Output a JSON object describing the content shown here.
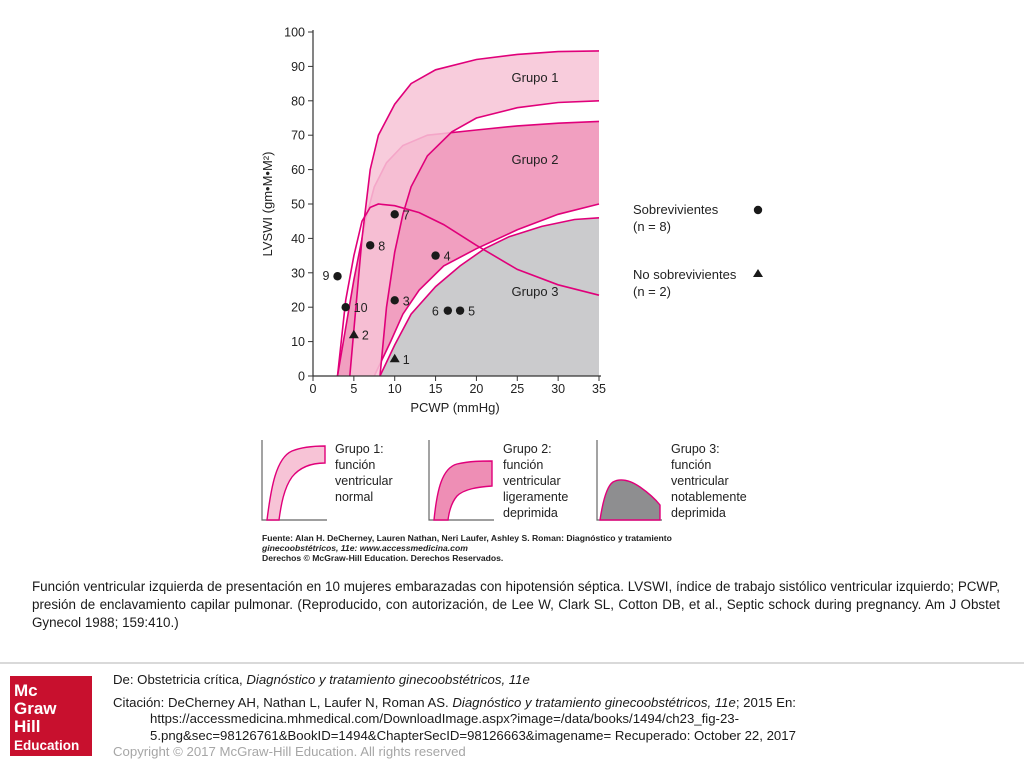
{
  "chart_data": {
    "type": "area",
    "xlabel": "PCWP (mmHg)",
    "ylabel": "LVSWI (gm•M•M²)",
    "xlim": [
      0,
      35
    ],
    "ylim": [
      0,
      100
    ],
    "xticks": [
      0,
      5,
      10,
      15,
      20,
      25,
      30,
      35
    ],
    "yticks": [
      0,
      10,
      20,
      30,
      40,
      50,
      60,
      70,
      80,
      90,
      100
    ],
    "grid": false,
    "series": [
      {
        "name": "Grupo 1",
        "label": "Grupo 1",
        "color": "#f7c3d6",
        "upper": [
          [
            4.5,
            0
          ],
          [
            6,
            40
          ],
          [
            7,
            60
          ],
          [
            8,
            70
          ],
          [
            10,
            79
          ],
          [
            12,
            85
          ],
          [
            15,
            89
          ],
          [
            20,
            92
          ],
          [
            25,
            93.5
          ],
          [
            30,
            94.3
          ],
          [
            35,
            94.5
          ]
        ],
        "lower": [
          [
            8.2,
            0
          ],
          [
            9,
            20
          ],
          [
            10,
            36
          ],
          [
            11,
            47
          ],
          [
            12,
            55
          ],
          [
            14,
            64
          ],
          [
            17,
            71
          ],
          [
            20,
            75
          ],
          [
            25,
            78
          ],
          [
            30,
            79.5
          ],
          [
            35,
            80
          ]
        ]
      },
      {
        "name": "Grupo 2",
        "label": "Grupo 2",
        "color": "#ee8eb5",
        "upper": [
          [
            3,
            0
          ],
          [
            5,
            28
          ],
          [
            6.5,
            46
          ],
          [
            7.5,
            55
          ],
          [
            9,
            62
          ],
          [
            11,
            67
          ],
          [
            14,
            70
          ],
          [
            20,
            71.5
          ],
          [
            25,
            72.7
          ],
          [
            30,
            73.5
          ],
          [
            35,
            74
          ]
        ],
        "lower": [
          [
            7.5,
            0
          ],
          [
            9.5,
            10
          ],
          [
            11,
            18
          ],
          [
            13,
            25
          ],
          [
            16,
            32
          ],
          [
            20,
            37
          ],
          [
            25,
            42.5
          ],
          [
            30,
            47
          ],
          [
            35,
            50
          ]
        ]
      },
      {
        "name": "Grupo 3",
        "label": "Grupo 3",
        "color": "#cbcbcd",
        "upper": [
          [
            8.2,
            0
          ],
          [
            10,
            9
          ],
          [
            12,
            18
          ],
          [
            15,
            26
          ],
          [
            18,
            32
          ],
          [
            21,
            37
          ],
          [
            24,
            40.5
          ],
          [
            28,
            43.5
          ],
          [
            32,
            45.5
          ],
          [
            35,
            46
          ]
        ],
        "lower": [
          [
            8.2,
            0
          ],
          [
            35,
            0
          ]
        ]
      }
    ],
    "boundary_curve": [
      [
        3,
        0
      ],
      [
        4,
        22
      ],
      [
        5,
        35
      ],
      [
        6,
        45
      ],
      [
        7,
        49
      ],
      [
        8,
        50
      ],
      [
        10,
        49.5
      ],
      [
        13,
        47.5
      ],
      [
        16,
        44
      ],
      [
        20,
        38
      ],
      [
        25,
        31
      ],
      [
        30,
        26.5
      ],
      [
        35,
        23.5
      ]
    ],
    "points": [
      {
        "label": "1",
        "x": 10,
        "y": 5,
        "group": "No sobrevivientes"
      },
      {
        "label": "2",
        "x": 5,
        "y": 12,
        "group": "No sobrevivientes"
      },
      {
        "label": "3",
        "x": 10,
        "y": 22,
        "group": "Sobrevivientes"
      },
      {
        "label": "4",
        "x": 15,
        "y": 35,
        "group": "Sobrevivientes"
      },
      {
        "label": "5",
        "x": 18,
        "y": 19,
        "group": "Sobrevivientes"
      },
      {
        "label": "6",
        "x": 16.5,
        "y": 19,
        "group": "Sobrevivientes"
      },
      {
        "label": "7",
        "x": 10,
        "y": 47,
        "group": "Sobrevivientes"
      },
      {
        "label": "8",
        "x": 7,
        "y": 38,
        "group": "Sobrevivientes"
      },
      {
        "label": "9",
        "x": 3,
        "y": 29,
        "group": "Sobrevivientes"
      },
      {
        "label": "10",
        "x": 4,
        "y": 20,
        "group": "Sobrevivientes"
      }
    ],
    "legend": {
      "placement": "right",
      "items": [
        {
          "line1": "Sobrevivientes",
          "line2": "(n = 8)",
          "marker": "circle"
        },
        {
          "line1": "No sobrevivientes",
          "line2": "(n = 2)",
          "marker": "triangle"
        }
      ]
    },
    "mini_panels": [
      {
        "lines": [
          "Grupo 1:",
          "función",
          "ventricular",
          "normal"
        ]
      },
      {
        "lines": [
          "Grupo 2:",
          "función",
          "ventricular",
          "ligeramente",
          "deprimida"
        ]
      },
      {
        "lines": [
          "Grupo 3:",
          "función",
          "ventricular",
          "notablemente",
          "deprimida"
        ]
      }
    ],
    "source": {
      "line1": "Fuente: Alan H. DeCherney, Lauren Nathan, Neri Laufer, Ashley S. Roman: Diagnóstico y tratamiento",
      "line2": "ginecoobstétricos, 11e: www.accessmedicina.com",
      "line3": "Derechos © McGraw-Hill Education. Derechos Reservados."
    }
  },
  "caption": " Función ventricular izquierda de presentación en 10 mujeres embarazadas con hipotensión séptica. LVSWI, índice de trabajo sistólico ventricular izquierdo; PCWP, presión de enclavamiento capilar pulmonar. (Reproducido, con autorización, de Lee W, Clark SL, Cotton DB, et al., Septic schock during pregnancy. Am J Obstet Gynecol 1988; 159:410.)",
  "logo": {
    "line1": "Mc",
    "line2": "Graw",
    "line3": "Hill",
    "line4": "Education"
  },
  "footer": {
    "de_prefix": "De: Obstetricia crítica, ",
    "de_book": "Diagnóstico y tratamiento ginecoobstétricos, 11e",
    "cit_prefix": "Citación: DeCherney AH, Nathan L, Laufer N, Roman AS. ",
    "cit_book": "Diagnóstico y tratamiento ginecoobstétricos, 11e",
    "cit_suffix": "; 2015 En:",
    "url1": "https://accessmedicina.mhmedical.com/DownloadImage.aspx?image=/data/books/1494/ch23_fig-23-",
    "url2": "5.png&sec=98126761&BookID=1494&ChapterSecID=98126663&imagename= Recuperado: October 22, 2017",
    "copyright": "Copyright © 2017 McGraw-Hill Education. All rights reserved"
  }
}
